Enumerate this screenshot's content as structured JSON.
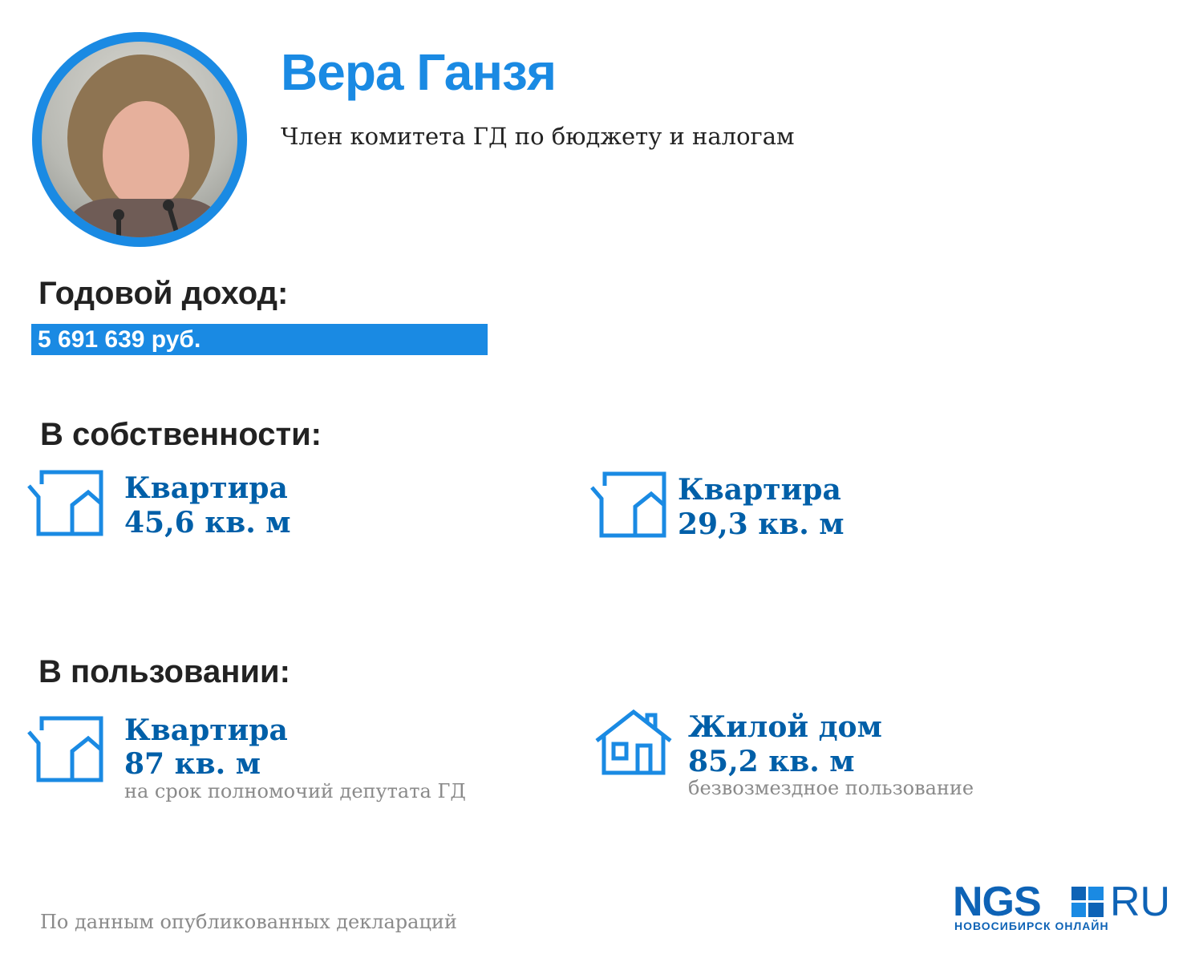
{
  "person": {
    "name": "Вера Ганзя",
    "position": "Член комитета ГД по бюджету и налогам"
  },
  "income": {
    "title": "Годовой доход:",
    "value": "5 691 639 руб."
  },
  "owned": {
    "title": "В собственности:",
    "items": [
      {
        "icon": "apartment-icon",
        "type": "Квартира",
        "area": "45,6 кв. м"
      },
      {
        "icon": "apartment-icon",
        "type": "Квартира",
        "area": "29,3 кв. м"
      }
    ]
  },
  "used": {
    "title": "В пользовании:",
    "items": [
      {
        "icon": "apartment-icon",
        "type": "Квартира",
        "area": "87 кв. м",
        "note": "на срок полномочий депутата ГД"
      },
      {
        "icon": "house-icon",
        "type": "Жилой дом",
        "area": "85,2 кв. м",
        "note": "безвозмездное пользование"
      }
    ]
  },
  "footer": {
    "source": "По данным опубликованных деклараций"
  },
  "logo": {
    "main": "NGS",
    "domain": "RU",
    "subtitle": "НОВОСИБИРСК ОНЛАЙН"
  },
  "colors": {
    "accent": "#1a8ae3",
    "property_text": "#005fa8",
    "logo": "#0e63b6",
    "muted": "#8a8a8a"
  }
}
